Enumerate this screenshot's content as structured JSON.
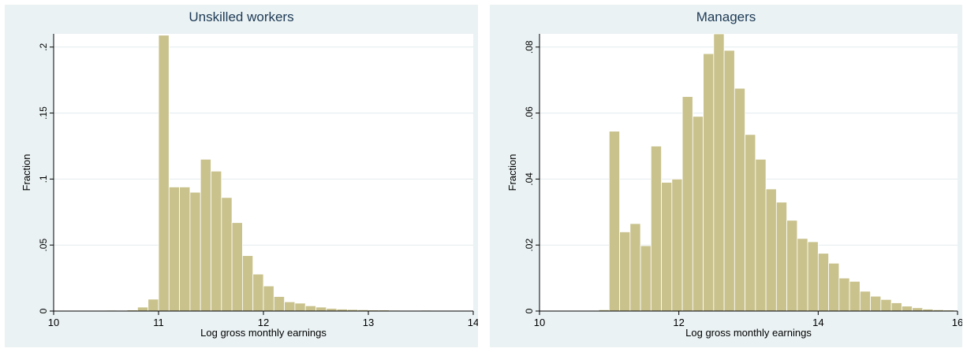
{
  "chart_data": [
    {
      "type": "bar",
      "title": "Unskilled workers",
      "xlabel": "Log gross monthly earnings",
      "ylabel": "Fraction",
      "xlim": [
        10,
        14
      ],
      "ylim": [
        0,
        0.21
      ],
      "xticks": [
        "10",
        "11",
        "12",
        "13",
        "14"
      ],
      "yticks": [
        "0",
        ".05",
        ".1",
        ".15",
        ".2"
      ],
      "grid": true,
      "bar_color": "#c9c28d",
      "bin_width": 0.1,
      "bin_starts": [
        10.4,
        10.5,
        10.6,
        10.7,
        10.8,
        10.9,
        11.0,
        11.1,
        11.2,
        11.3,
        11.4,
        11.5,
        11.6,
        11.7,
        11.8,
        11.9,
        12.0,
        12.1,
        12.2,
        12.3,
        12.4,
        12.5,
        12.6,
        12.7,
        12.8,
        12.9,
        13.0,
        13.1,
        13.2,
        13.3,
        13.4,
        13.5,
        13.6,
        13.7
      ],
      "values": [
        0.0004,
        0.0006,
        0.0004,
        0.0008,
        0.003,
        0.009,
        0.209,
        0.094,
        0.094,
        0.09,
        0.115,
        0.106,
        0.086,
        0.067,
        0.042,
        0.028,
        0.019,
        0.011,
        0.007,
        0.006,
        0.004,
        0.003,
        0.002,
        0.0015,
        0.0012,
        0.001,
        0.0008,
        0.0008,
        0.0006,
        0.0005,
        0.0004,
        0.0006,
        0.0004,
        0.0003
      ]
    },
    {
      "type": "bar",
      "title": "Managers",
      "xlabel": "Log gross monthly earnings",
      "ylabel": "Fraction",
      "xlim": [
        10,
        16
      ],
      "ylim": [
        0,
        0.084
      ],
      "xticks": [
        "10",
        "12",
        "14",
        "16"
      ],
      "yticks": [
        "0",
        ".02",
        ".04",
        ".06",
        ".08"
      ],
      "grid": true,
      "bar_color": "#c9c28d",
      "bin_width": 0.15,
      "bin_starts": [
        10.4,
        10.55,
        10.7,
        10.85,
        11.0,
        11.15,
        11.3,
        11.45,
        11.6,
        11.75,
        11.9,
        12.05,
        12.2,
        12.35,
        12.5,
        12.65,
        12.8,
        12.95,
        13.1,
        13.25,
        13.4,
        13.55,
        13.7,
        13.85,
        14.0,
        14.15,
        14.3,
        14.45,
        14.6,
        14.75,
        14.9,
        15.05,
        15.2,
        15.35,
        15.5,
        15.65,
        15.8
      ],
      "values": [
        0.0002,
        0.0002,
        0.0002,
        0.0004,
        0.0545,
        0.024,
        0.0265,
        0.0198,
        0.05,
        0.039,
        0.04,
        0.065,
        0.059,
        0.078,
        0.084,
        0.079,
        0.0675,
        0.0535,
        0.046,
        0.037,
        0.033,
        0.0275,
        0.022,
        0.021,
        0.0175,
        0.0145,
        0.01,
        0.009,
        0.006,
        0.0045,
        0.0035,
        0.0025,
        0.0015,
        0.001,
        0.0006,
        0.0004,
        0.0003
      ]
    }
  ]
}
